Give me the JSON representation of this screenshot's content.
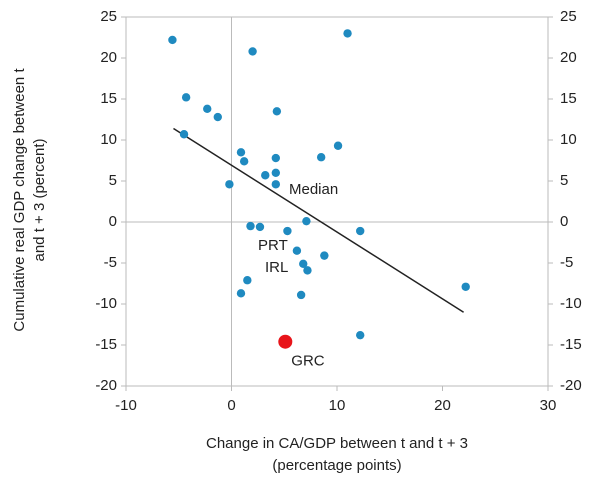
{
  "chart_data": {
    "type": "scatter",
    "x_label": [
      "Change in CA/GDP between t and t + 3",
      "(percentage points)"
    ],
    "y_label": [
      "Cumulative real GDP change between t",
      "and t + 3 (percent)"
    ],
    "xlim": [
      -10,
      30
    ],
    "xticks": [
      -10,
      0,
      10,
      20,
      30
    ],
    "ylim": [
      -20,
      25
    ],
    "yticks": [
      -20,
      -15,
      -10,
      -5,
      0,
      5,
      10,
      15,
      20,
      25
    ],
    "y2lim": [
      -20,
      25
    ],
    "y2ticks": [
      -20,
      -15,
      -10,
      -5,
      0,
      5,
      10,
      15,
      20,
      25
    ],
    "grid": false,
    "points": {
      "color": "#1f8ac0",
      "x": [
        -5.6,
        11,
        2,
        -4.3,
        -2.3,
        -1.3,
        4.3,
        -4.5,
        10.1,
        0.9,
        1.2,
        4.2,
        8.5,
        3.2,
        4.2,
        4.2,
        -0.2,
        7.1,
        12.2,
        1.8,
        2.7,
        5.3,
        6.2,
        8.8,
        6.8,
        7.2,
        1.5,
        0.9,
        6.6,
        22.2,
        12.2
      ],
      "y": [
        22.2,
        23,
        20.8,
        15.2,
        13.8,
        12.8,
        13.5,
        10.7,
        9.3,
        8.5,
        7.4,
        7.8,
        7.9,
        5.7,
        6,
        4.6,
        4.6,
        0.1,
        -1.1,
        -0.5,
        -0.6,
        -1.1,
        -3.5,
        -4.1,
        -5.1,
        -5.9,
        -7.1,
        -8.7,
        -8.9,
        -7.9,
        -13.8
      ]
    },
    "highlight": {
      "label": "GRC",
      "x": 5.1,
      "y": -14.6,
      "color": "#e8141a"
    },
    "trend_line": {
      "x": [
        -5.5,
        22
      ],
      "y": [
        11.4,
        -11
      ],
      "color": "#222222"
    },
    "annotations": [
      "Median",
      "PRT",
      "IRL"
    ]
  }
}
